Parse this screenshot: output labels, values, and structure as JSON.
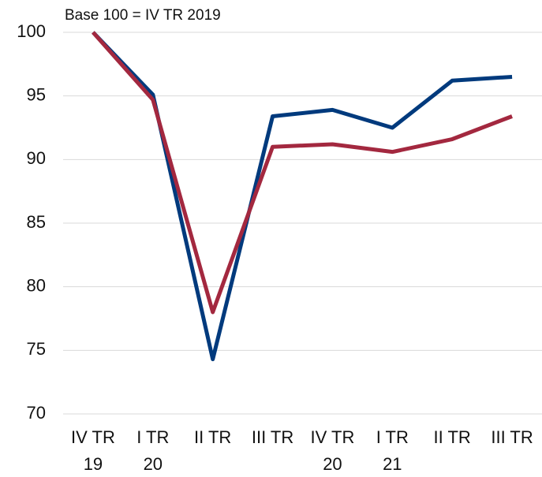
{
  "chart_data": {
    "type": "line",
    "annotation": "Base 100 = IV TR 2019",
    "categories": [
      [
        "IV TR",
        "19"
      ],
      [
        "I TR",
        "20"
      ],
      [
        "II TR"
      ],
      [
        "III TR"
      ],
      [
        "IV TR",
        "20"
      ],
      [
        "I TR",
        "21"
      ],
      [
        "II TR"
      ],
      [
        "III TR"
      ]
    ],
    "series": [
      {
        "color": "#003a7d",
        "values": [
          100,
          95.1,
          74.3,
          93.4,
          93.9,
          92.5,
          96.2,
          96.5
        ]
      },
      {
        "color": "#a3283f",
        "values": [
          100,
          94.7,
          78.0,
          91.0,
          91.2,
          90.6,
          91.6,
          93.4
        ]
      }
    ],
    "ylim": [
      70,
      100
    ],
    "yticks": [
      70,
      75,
      80,
      85,
      90,
      95,
      100
    ],
    "grid": true
  }
}
